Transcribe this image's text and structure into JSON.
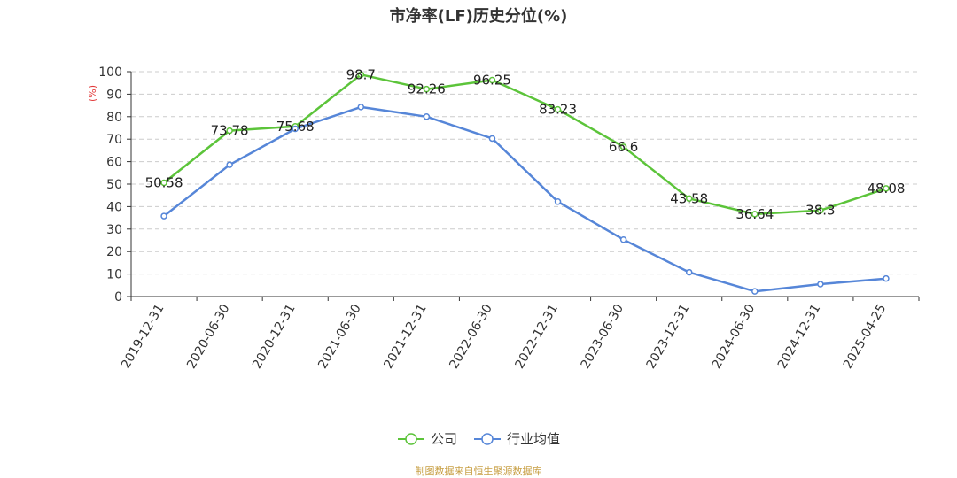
{
  "chart_data": {
    "type": "line",
    "title": "市净率(LF)历史分位(%)",
    "ylabel": "(%)",
    "xlabel": "",
    "ylim": [
      0,
      100
    ],
    "ytick_step": 10,
    "grid": true,
    "legend_position": "bottom",
    "categories": [
      "2019-12-31",
      "2020-06-30",
      "2020-12-31",
      "2021-06-30",
      "2021-12-31",
      "2022-06-30",
      "2022-12-31",
      "2023-06-30",
      "2023-12-31",
      "2024-06-30",
      "2024-12-31",
      "2025-04-25"
    ],
    "series": [
      {
        "name": "公司",
        "color": "#5cc43a",
        "values": [
          50.58,
          73.78,
          75.68,
          98.7,
          92.26,
          96.25,
          83.23,
          66.6,
          43.58,
          36.64,
          38.3,
          48.08
        ],
        "labels": [
          "50.58",
          "73.78",
          "75.68",
          "98.7",
          "92.26",
          "96.25",
          "83.23",
          "66.6",
          "43.58",
          "36.64",
          "38.3",
          "48.08"
        ]
      },
      {
        "name": "行业均值",
        "color": "#5686d8",
        "values": [
          35.8,
          58.6,
          74.6,
          84.3,
          80.0,
          70.3,
          42.2,
          25.3,
          10.8,
          2.3,
          5.5,
          8.0
        ]
      }
    ]
  },
  "footer": {
    "source": "制图数据来自恒生聚源数据库"
  }
}
